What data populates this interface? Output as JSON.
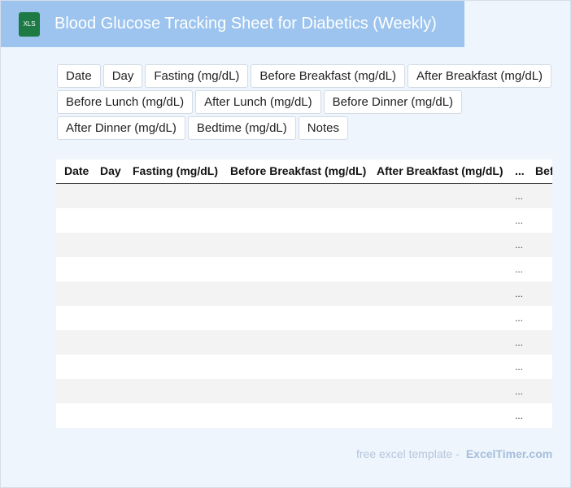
{
  "header": {
    "icon": "XLS",
    "title": "Blood Glucose Tracking Sheet for Diabetics (Weekly)"
  },
  "chips": [
    "Date",
    "Day",
    "Fasting (mg/dL)",
    "Before Breakfast (mg/dL)",
    "After Breakfast (mg/dL)",
    "Before Lunch (mg/dL)",
    "After Lunch (mg/dL)",
    "Before Dinner (mg/dL)",
    "After Dinner (mg/dL)",
    "Bedtime (mg/dL)",
    "Notes"
  ],
  "table": {
    "columns": [
      "Date",
      "Day",
      "Fasting (mg/dL)",
      "Before Breakfast (mg/dL)",
      "After Breakfast (mg/dL)",
      "...",
      "Before Lunch (mg/dL)"
    ],
    "rows": [
      "...",
      "...",
      "...",
      "...",
      "...",
      "...",
      "...",
      "...",
      "...",
      "..."
    ]
  },
  "footer": {
    "text": "free excel template -",
    "link": "ExcelTimer.com"
  }
}
